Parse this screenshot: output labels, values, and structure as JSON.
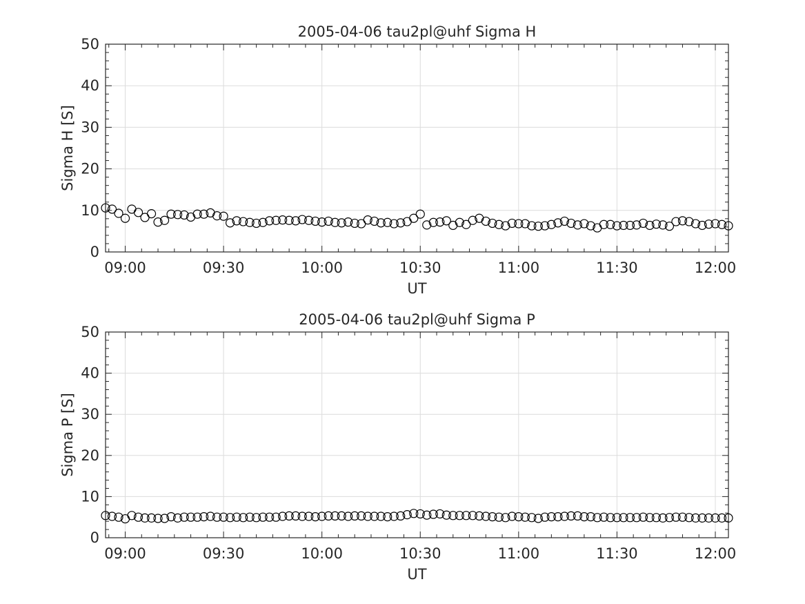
{
  "chart_data": [
    {
      "type": "scatter",
      "title": "2005-04-06  tau2pl@uhf Sigma H",
      "xlabel": "UT",
      "ylabel": "Sigma H [S]",
      "xlim": [
        "08:54",
        "12:04"
      ],
      "ylim": [
        0,
        50
      ],
      "grid": true,
      "x_ticks": [
        "09:00",
        "09:30",
        "10:00",
        "10:30",
        "11:00",
        "11:30",
        "12:00"
      ],
      "y_ticks": [
        "0",
        "10",
        "20",
        "30",
        "40",
        "50"
      ],
      "x": [
        "08:54",
        "08:56",
        "08:58",
        "09:00",
        "09:02",
        "09:04",
        "09:06",
        "09:08",
        "09:10",
        "09:12",
        "09:14",
        "09:16",
        "09:18",
        "09:20",
        "09:22",
        "09:24",
        "09:26",
        "09:28",
        "09:30",
        "09:32",
        "09:34",
        "09:36",
        "09:38",
        "09:40",
        "09:42",
        "09:44",
        "09:46",
        "09:48",
        "09:50",
        "09:52",
        "09:54",
        "09:56",
        "09:58",
        "10:00",
        "10:02",
        "10:04",
        "10:06",
        "10:08",
        "10:10",
        "10:12",
        "10:14",
        "10:16",
        "10:18",
        "10:20",
        "10:22",
        "10:24",
        "10:26",
        "10:28",
        "10:30",
        "10:32",
        "10:34",
        "10:36",
        "10:38",
        "10:40",
        "10:42",
        "10:44",
        "10:46",
        "10:48",
        "10:50",
        "10:52",
        "10:54",
        "10:56",
        "10:58",
        "11:00",
        "11:02",
        "11:04",
        "11:06",
        "11:08",
        "11:10",
        "11:12",
        "11:14",
        "11:16",
        "11:18",
        "11:20",
        "11:22",
        "11:24",
        "11:26",
        "11:28",
        "11:30",
        "11:32",
        "11:34",
        "11:36",
        "11:38",
        "11:40",
        "11:42",
        "11:44",
        "11:46",
        "11:48",
        "11:50",
        "11:52",
        "11:54",
        "11:56",
        "11:58",
        "12:00",
        "12:02",
        "12:04"
      ],
      "values": [
        10.6,
        10.3,
        9.3,
        8.1,
        10.3,
        9.5,
        8.3,
        9.2,
        7.2,
        7.6,
        9.1,
        9.0,
        8.9,
        8.4,
        9.1,
        9.1,
        9.4,
        8.7,
        8.6,
        7.0,
        7.5,
        7.3,
        7.1,
        6.9,
        7.1,
        7.5,
        7.6,
        7.7,
        7.6,
        7.5,
        7.8,
        7.6,
        7.4,
        7.2,
        7.4,
        7.1,
        7.0,
        7.2,
        6.9,
        6.8,
        7.7,
        7.4,
        7.0,
        7.1,
        6.8,
        7.0,
        7.3,
        8.1,
        9.1,
        6.5,
        7.1,
        7.2,
        7.5,
        6.4,
        7.1,
        6.6,
        7.6,
        8.1,
        7.4,
        6.9,
        6.6,
        6.3,
        6.9,
        6.8,
        6.8,
        6.3,
        6.2,
        6.3,
        6.6,
        7.0,
        7.4,
        6.9,
        6.5,
        6.8,
        6.3,
        5.8,
        6.6,
        6.6,
        6.3,
        6.4,
        6.4,
        6.5,
        6.9,
        6.4,
        6.7,
        6.5,
        6.2,
        7.3,
        7.5,
        7.3,
        6.8,
        6.4,
        6.7,
        6.8,
        6.6,
        6.3
      ]
    },
    {
      "type": "scatter",
      "title": "2005-04-06  tau2pl@uhf Sigma P",
      "xlabel": "UT",
      "ylabel": "Sigma P [S]",
      "xlim": [
        "08:54",
        "12:04"
      ],
      "ylim": [
        0,
        50
      ],
      "grid": true,
      "x_ticks": [
        "09:00",
        "09:30",
        "10:00",
        "10:30",
        "11:00",
        "11:30",
        "12:00"
      ],
      "y_ticks": [
        "0",
        "10",
        "20",
        "30",
        "40",
        "50"
      ],
      "x": [
        "08:54",
        "08:56",
        "08:58",
        "09:00",
        "09:02",
        "09:04",
        "09:06",
        "09:08",
        "09:10",
        "09:12",
        "09:14",
        "09:16",
        "09:18",
        "09:20",
        "09:22",
        "09:24",
        "09:26",
        "09:28",
        "09:30",
        "09:32",
        "09:34",
        "09:36",
        "09:38",
        "09:40",
        "09:42",
        "09:44",
        "09:46",
        "09:48",
        "09:50",
        "09:52",
        "09:54",
        "09:56",
        "09:58",
        "10:00",
        "10:02",
        "10:04",
        "10:06",
        "10:08",
        "10:10",
        "10:12",
        "10:14",
        "10:16",
        "10:18",
        "10:20",
        "10:22",
        "10:24",
        "10:26",
        "10:28",
        "10:30",
        "10:32",
        "10:34",
        "10:36",
        "10:38",
        "10:40",
        "10:42",
        "10:44",
        "10:46",
        "10:48",
        "10:50",
        "10:52",
        "10:54",
        "10:56",
        "10:58",
        "11:00",
        "11:02",
        "11:04",
        "11:06",
        "11:08",
        "11:10",
        "11:12",
        "11:14",
        "11:16",
        "11:18",
        "11:20",
        "11:22",
        "11:24",
        "11:26",
        "11:28",
        "11:30",
        "11:32",
        "11:34",
        "11:36",
        "11:38",
        "11:40",
        "11:42",
        "11:44",
        "11:46",
        "11:48",
        "11:50",
        "11:52",
        "11:54",
        "11:56",
        "11:58",
        "12:00",
        "12:02",
        "12:04"
      ],
      "values": [
        5.4,
        5.2,
        5.0,
        4.6,
        5.4,
        5.0,
        4.8,
        4.8,
        4.7,
        4.7,
        5.1,
        4.8,
        5.0,
        5.0,
        5.0,
        5.1,
        5.2,
        5.0,
        5.0,
        4.9,
        5.0,
        4.9,
        5.0,
        4.9,
        5.0,
        5.0,
        5.0,
        5.2,
        5.3,
        5.3,
        5.2,
        5.2,
        5.1,
        5.2,
        5.3,
        5.3,
        5.3,
        5.2,
        5.3,
        5.3,
        5.2,
        5.2,
        5.2,
        5.1,
        5.2,
        5.3,
        5.6,
        5.9,
        5.8,
        5.5,
        5.7,
        5.8,
        5.5,
        5.4,
        5.4,
        5.4,
        5.4,
        5.3,
        5.2,
        5.1,
        5.0,
        4.9,
        5.2,
        5.1,
        5.0,
        4.9,
        4.7,
        5.0,
        5.1,
        5.1,
        5.2,
        5.3,
        5.3,
        5.1,
        5.1,
        4.9,
        5.0,
        4.9,
        4.9,
        4.9,
        4.9,
        4.9,
        5.0,
        4.9,
        4.9,
        4.8,
        4.9,
        5.0,
        5.0,
        4.9,
        4.8,
        4.8,
        4.8,
        4.8,
        4.8,
        4.8
      ]
    }
  ]
}
